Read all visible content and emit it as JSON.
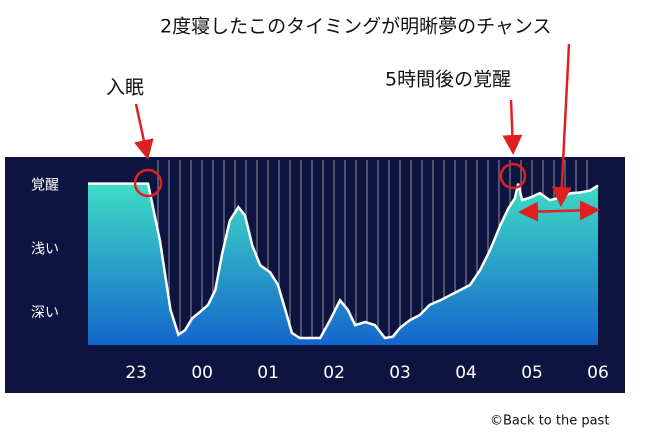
{
  "chart_data": {
    "type": "area",
    "x": [
      22.27,
      23.18,
      23.36,
      23.52,
      23.64,
      23.74,
      23.85,
      23.97,
      24.09,
      24.2,
      24.3,
      24.42,
      24.55,
      24.65,
      24.76,
      24.88,
      25.03,
      25.15,
      25.26,
      25.36,
      25.48,
      25.79,
      25.94,
      26.09,
      26.21,
      26.32,
      26.47,
      26.62,
      26.77,
      26.89,
      27.0,
      27.15,
      27.3,
      27.45,
      27.61,
      27.76,
      27.91,
      28.06,
      28.21,
      28.36,
      28.52,
      28.64,
      28.74,
      28.79,
      28.85,
      28.97,
      29.12,
      29.27,
      29.42,
      29.58,
      29.73,
      29.88,
      30.0
    ],
    "values": [
      3.03,
      3.03,
      2.14,
      1.05,
      0.66,
      0.73,
      0.92,
      1.02,
      1.13,
      1.36,
      1.91,
      2.45,
      2.66,
      2.53,
      2.06,
      1.75,
      1.64,
      1.44,
      1.05,
      0.69,
      0.61,
      0.61,
      0.89,
      1.2,
      1.05,
      0.81,
      0.86,
      0.81,
      0.61,
      0.63,
      0.77,
      0.89,
      0.97,
      1.13,
      1.2,
      1.28,
      1.36,
      1.44,
      1.67,
      1.98,
      2.38,
      2.64,
      2.8,
      3.03,
      2.77,
      2.81,
      2.88,
      2.77,
      2.81,
      2.88,
      2.89,
      2.92,
      3.0
    ],
    "xlim": [
      22.27,
      30.0
    ],
    "xticks": [
      {
        "value": 23,
        "label": "23"
      },
      {
        "value": 24,
        "label": "00"
      },
      {
        "value": 25,
        "label": "01"
      },
      {
        "value": 26,
        "label": "02"
      },
      {
        "value": 27,
        "label": "03"
      },
      {
        "value": 28,
        "label": "04"
      },
      {
        "value": 29,
        "label": "05"
      },
      {
        "value": 30,
        "label": "06"
      }
    ],
    "ylim": [
      0.5,
      3.4
    ],
    "yticks": [
      {
        "value": 3,
        "label": "覚醒"
      },
      {
        "value": 2,
        "label": "浅い"
      },
      {
        "value": 1,
        "label": "深い"
      }
    ],
    "annotations": [
      "2度寝したこのタイミングが明晰夢のチャンス",
      "入眠",
      "5時間後の覚醒"
    ],
    "credit": "©Back to the past"
  }
}
